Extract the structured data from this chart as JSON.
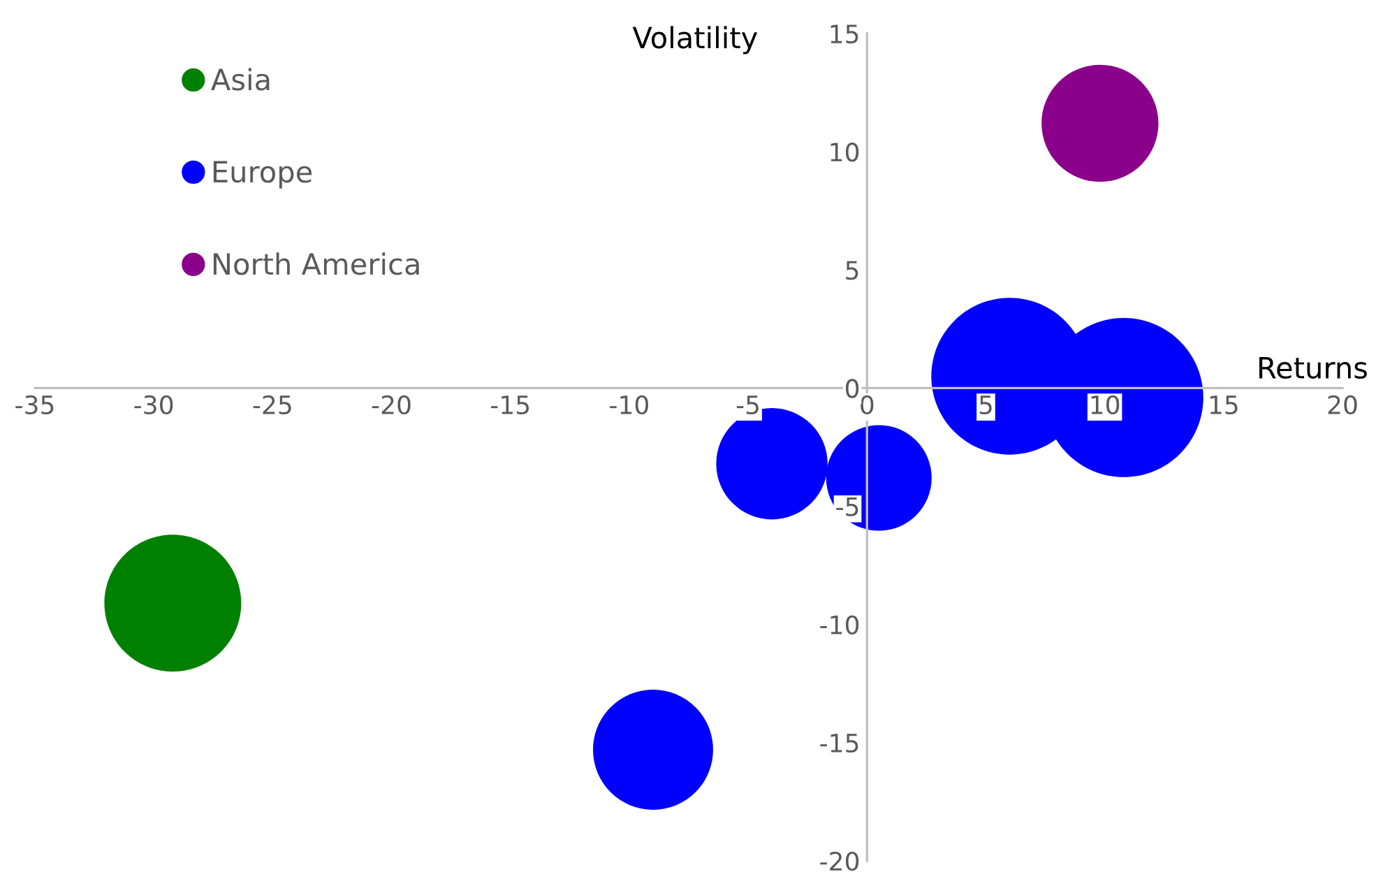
{
  "chart_data": {
    "type": "bubble",
    "xlabel": "Returns",
    "ylabel": "Volatility",
    "xlim": [
      -35,
      20
    ],
    "xticks": [
      -35,
      -30,
      -25,
      -20,
      -15,
      -10,
      -5,
      0,
      5,
      10,
      15,
      20
    ],
    "ylim": [
      -20,
      15
    ],
    "yticks": [
      -20,
      -15,
      -10,
      -5,
      0,
      5,
      10,
      15
    ],
    "grid": false,
    "legend": "top left",
    "series": [
      {
        "name": "Asia",
        "color": "#008000",
        "x": [
          -29.2
        ],
        "values": [
          -9.1
        ],
        "sizes": [
          0.74
        ]
      },
      {
        "name": "Europe",
        "color": "#0000ff",
        "x": [
          -9.0,
          -4.0,
          0.5,
          6.0,
          10.8
        ],
        "values": [
          -15.3,
          -3.2,
          -3.8,
          0.5,
          -0.4
        ],
        "sizes": [
          0.57,
          0.49,
          0.44,
          0.97,
          1
        ]
      },
      {
        "name": "North America",
        "color": "#8b008b",
        "x": [
          9.8
        ],
        "values": [
          11.2
        ],
        "sizes": [
          0.54
        ]
      }
    ]
  }
}
